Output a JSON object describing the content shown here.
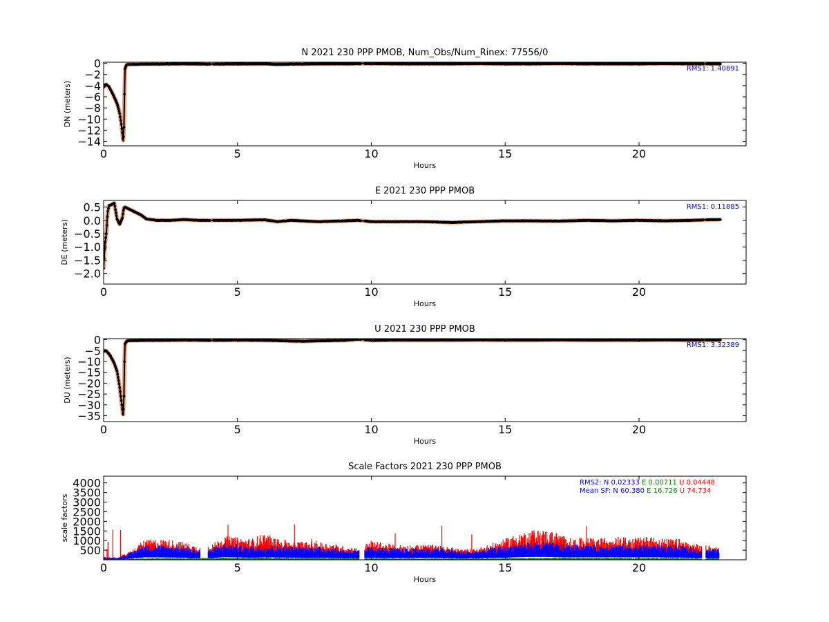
{
  "chart_data": [
    {
      "type": "scatter",
      "title": "N 2021 230 PPP  PMOB, Num_Obs/Num_Rinex: 77556/0",
      "xlabel": "Hours",
      "ylabel": "DN (meters)",
      "xlim": [
        0,
        24
      ],
      "ylim": [
        -14.8,
        0.2
      ],
      "xticks": [
        "0",
        "5",
        "10",
        "15",
        "20"
      ],
      "yticks": [
        {
          "v": 0,
          "label": "0"
        },
        {
          "v": -2,
          "label": "−2"
        },
        {
          "v": -4,
          "label": "−4"
        },
        {
          "v": -6,
          "label": "−6"
        },
        {
          "v": -8,
          "label": "−8"
        },
        {
          "v": -10,
          "label": "−10"
        },
        {
          "v": -12,
          "label": "−12"
        },
        {
          "v": -14,
          "label": "−14"
        }
      ],
      "annotation": "RMS1:  1.40891",
      "annotation_color": "#0000ff",
      "series": [
        {
          "color": "#f4a57c",
          "role": "band"
        },
        {
          "color": "#000000",
          "role": "points",
          "x": [
            0.0,
            0.05,
            0.1,
            0.2,
            0.3,
            0.4,
            0.5,
            0.55,
            0.6,
            0.65,
            0.7,
            0.73,
            0.76,
            0.78,
            0.8,
            0.85,
            0.9,
            1.0,
            1.5,
            2,
            3,
            4,
            5,
            6,
            6.5,
            7,
            8,
            9,
            10,
            11,
            12,
            13,
            14,
            15,
            16,
            17,
            18,
            19,
            20,
            21,
            22,
            22.5,
            23
          ],
          "y": [
            -4.3,
            -3.9,
            -3.8,
            -4.2,
            -5.1,
            -6.1,
            -7.2,
            -8.0,
            -9.0,
            -10.5,
            -12.5,
            -14.0,
            -11.5,
            -5.5,
            -1.0,
            -0.3,
            -0.2,
            -0.2,
            -0.15,
            -0.15,
            -0.1,
            -0.15,
            -0.12,
            -0.1,
            -0.2,
            -0.15,
            -0.1,
            -0.1,
            -0.05,
            -0.1,
            -0.1,
            -0.1,
            -0.05,
            -0.1,
            -0.1,
            -0.05,
            -0.1,
            -0.1,
            -0.1,
            -0.05,
            -0.1,
            -0.1,
            -0.1
          ]
        }
      ]
    },
    {
      "type": "scatter",
      "title": "E 2021 230 PPP  PMOB",
      "xlabel": "Hours",
      "ylabel": "DE (meters)",
      "xlim": [
        0,
        24
      ],
      "ylim": [
        -2.4,
        0.75
      ],
      "xticks": [
        "0",
        "5",
        "10",
        "15",
        "20"
      ],
      "yticks": [
        {
          "v": 0.5,
          "label": "0.5"
        },
        {
          "v": 0,
          "label": "0.0"
        },
        {
          "v": -0.5,
          "label": "−0.5"
        },
        {
          "v": -1,
          "label": "−1.0"
        },
        {
          "v": -1.5,
          "label": "−1.5"
        },
        {
          "v": -2,
          "label": "−2.0"
        }
      ],
      "annotation": "RMS1:  0.11885",
      "annotation_color": "#0000ff",
      "series": [
        {
          "color": "#f4a57c",
          "role": "band"
        },
        {
          "color": "#000000",
          "role": "points",
          "x": [
            0.0,
            0.05,
            0.1,
            0.15,
            0.2,
            0.3,
            0.4,
            0.5,
            0.6,
            0.7,
            0.75,
            0.8,
            0.9,
            1.0,
            1.2,
            1.4,
            1.6,
            2.0,
            2.5,
            3.0,
            3.5,
            4.0,
            5.0,
            6.0,
            6.5,
            7.0,
            8.0,
            9.0,
            9.5,
            10.0,
            11.0,
            12.0,
            13.0,
            14.0,
            15.0,
            16.0,
            17.0,
            18.0,
            19.0,
            20.0,
            21.0,
            22.0,
            22.5,
            23.0
          ],
          "y": [
            -1.8,
            -0.9,
            -0.5,
            0.3,
            0.55,
            0.6,
            0.65,
            0.05,
            -0.15,
            0.1,
            0.45,
            0.5,
            0.45,
            0.4,
            0.3,
            0.2,
            0.05,
            0.0,
            0.0,
            0.03,
            0.0,
            0.0,
            0.0,
            0.02,
            -0.05,
            0.0,
            -0.05,
            -0.02,
            0.0,
            -0.05,
            -0.05,
            -0.05,
            -0.08,
            -0.05,
            -0.02,
            -0.02,
            -0.03,
            0.0,
            -0.02,
            0.0,
            -0.02,
            0.0,
            0.02,
            0.03
          ]
        }
      ]
    },
    {
      "type": "scatter",
      "title": "U 2021 230 PPP  PMOB",
      "xlabel": "Hours",
      "ylabel": "DU (meters)",
      "xlim": [
        0,
        24
      ],
      "ylim": [
        -37.7,
        0.5
      ],
      "xticks": [
        "0",
        "5",
        "10",
        "15",
        "20"
      ],
      "yticks": [
        {
          "v": 0,
          "label": "0"
        },
        {
          "v": -5,
          "label": "−5"
        },
        {
          "v": -10,
          "label": "−10"
        },
        {
          "v": -15,
          "label": "−15"
        },
        {
          "v": -20,
          "label": "−20"
        },
        {
          "v": -25,
          "label": "−25"
        },
        {
          "v": -30,
          "label": "−30"
        },
        {
          "v": -35,
          "label": "−35"
        }
      ],
      "annotation": "RMS1:  3.32389",
      "annotation_color": "#0000ff",
      "series": [
        {
          "color": "#f4a57c",
          "role": "band"
        },
        {
          "color": "#000000",
          "role": "points",
          "x": [
            0.0,
            0.05,
            0.1,
            0.2,
            0.3,
            0.4,
            0.5,
            0.55,
            0.6,
            0.65,
            0.7,
            0.73,
            0.76,
            0.78,
            0.8,
            0.85,
            0.9,
            1.0,
            1.5,
            2,
            3,
            4,
            5,
            6,
            6.5,
            7,
            7.5,
            8,
            9,
            9.5,
            10,
            11,
            12,
            13,
            14,
            15,
            16,
            17,
            18,
            19,
            20,
            21,
            22,
            22.5,
            23
          ],
          "y": [
            -5.5,
            -5.0,
            -5.2,
            -6.5,
            -8.5,
            -11.0,
            -14.5,
            -18.0,
            -22.0,
            -27.0,
            -32.0,
            -35.0,
            -26.0,
            -10.0,
            -2.0,
            -0.8,
            -0.5,
            -0.4,
            -0.3,
            -0.3,
            -0.2,
            -0.3,
            -0.2,
            -0.3,
            -0.4,
            -0.6,
            -0.7,
            -0.5,
            -0.3,
            0.2,
            -0.3,
            -0.2,
            -0.2,
            -0.2,
            -0.1,
            -0.2,
            -0.2,
            -0.1,
            -0.2,
            -0.2,
            -0.2,
            -0.1,
            -0.2,
            -0.2,
            -0.2
          ]
        }
      ]
    },
    {
      "type": "scatter",
      "title": "Scale Factors 2021 230 PPP  PMOB",
      "xlabel": "Hours",
      "ylabel": "scale factors",
      "xlim": [
        0,
        24
      ],
      "ylim": [
        0,
        4350
      ],
      "xticks": [
        "0",
        "5",
        "10",
        "15",
        "20"
      ],
      "yticks": [
        {
          "v": 500,
          "label": "500"
        },
        {
          "v": 1000,
          "label": "1000"
        },
        {
          "v": 1500,
          "label": "1500"
        },
        {
          "v": 2000,
          "label": "2000"
        },
        {
          "v": 2500,
          "label": "2500"
        },
        {
          "v": 3000,
          "label": "3000"
        },
        {
          "v": 3500,
          "label": "3500"
        },
        {
          "v": 4000,
          "label": "4000"
        }
      ],
      "stats": {
        "rms2_prefix": "RMS2: N",
        "rms2_n": "0.02333",
        "rms2_e_prefix": "E",
        "rms2_e": "0.00711",
        "rms2_u_prefix": "U",
        "rms2_u": "0.04448",
        "mean_prefix": "Mean SF: N",
        "mean_n": "60.380",
        "mean_e_prefix": "E",
        "mean_e": "16.726",
        "mean_u_prefix": "U",
        "mean_u": "74.734"
      },
      "series": [
        {
          "component": "N",
          "color": "#0000ff",
          "x": [
            0.0,
            0.5,
            1.0,
            1.5,
            2.0,
            2.5,
            3.0,
            3.5,
            4.0,
            4.5,
            5.0,
            5.5,
            6.0,
            6.5,
            7.0,
            7.5,
            8.0,
            8.5,
            9.0,
            9.5,
            10.0,
            10.5,
            11.0,
            11.5,
            12.0,
            12.5,
            13.0,
            13.5,
            14.0,
            14.5,
            15.0,
            15.5,
            16.0,
            16.5,
            17.0,
            17.5,
            18.0,
            18.5,
            19.0,
            19.5,
            20.0,
            20.5,
            21.0,
            21.5,
            22.0,
            22.5,
            23.0
          ],
          "y": [
            80,
            60,
            250,
            500,
            500,
            480,
            450,
            350,
            380,
            550,
            500,
            450,
            500,
            480,
            460,
            450,
            450,
            420,
            350,
            320,
            450,
            400,
            380,
            380,
            420,
            400,
            350,
            280,
            320,
            400,
            450,
            550,
            600,
            600,
            550,
            500,
            520,
            500,
            520,
            500,
            500,
            520,
            480,
            480,
            400,
            380,
            350
          ]
        },
        {
          "component": "E",
          "color": "#008000",
          "x": [
            0.0,
            1.0,
            2.0,
            3.0,
            4.0,
            5.0,
            6.0,
            7.0,
            8.0,
            9.0,
            10.0,
            11.0,
            12.0,
            13.0,
            14.0,
            15.0,
            16.0,
            17.0,
            18.0,
            19.0,
            20.0,
            21.0,
            22.0,
            23.0
          ],
          "y": [
            20,
            40,
            60,
            60,
            70,
            70,
            80,
            70,
            70,
            60,
            60,
            50,
            50,
            50,
            50,
            60,
            70,
            80,
            70,
            70,
            70,
            70,
            60,
            60
          ]
        },
        {
          "component": "U",
          "color": "#ff0000",
          "x": [
            0.0,
            0.5,
            1.0,
            1.5,
            2.0,
            2.5,
            3.0,
            3.5,
            4.0,
            4.5,
            5.0,
            5.5,
            6.0,
            6.5,
            7.0,
            7.5,
            8.0,
            8.5,
            9.0,
            9.5,
            10.0,
            10.5,
            11.0,
            11.5,
            12.0,
            12.5,
            13.0,
            13.5,
            14.0,
            14.5,
            15.0,
            15.5,
            16.0,
            16.5,
            17.0,
            17.5,
            18.0,
            18.5,
            19.0,
            19.5,
            20.0,
            20.5,
            21.0,
            21.5,
            22.0,
            22.5,
            23.0
          ],
          "y": [
            100,
            80,
            300,
            650,
            700,
            680,
            600,
            450,
            500,
            800,
            750,
            700,
            900,
            700,
            650,
            600,
            600,
            550,
            450,
            400,
            650,
            550,
            500,
            500,
            520,
            480,
            420,
            350,
            400,
            550,
            700,
            900,
            1000,
            1000,
            900,
            700,
            750,
            700,
            800,
            750,
            750,
            800,
            700,
            700,
            550,
            500,
            400
          ]
        }
      ]
    }
  ]
}
